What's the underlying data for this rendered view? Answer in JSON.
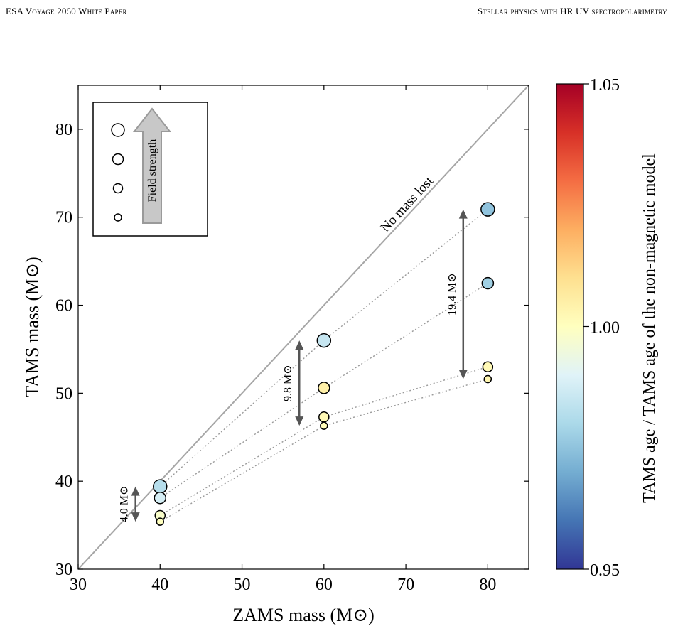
{
  "header": {
    "left": "ESA Voyage 2050 White Paper",
    "right": "Stellar physics with HR UV spectropolarimetry"
  },
  "chart_data": {
    "type": "scatter",
    "xlabel": "ZAMS mass (M⊙)",
    "ylabel": "TAMS mass (M⊙)",
    "xlim": [
      30,
      85
    ],
    "ylim": [
      30,
      85
    ],
    "xticks": [
      "30",
      "40",
      "50",
      "60",
      "70",
      "80"
    ],
    "yticks": [
      "30",
      "40",
      "50",
      "60",
      "70",
      "80"
    ],
    "grid": false,
    "identity_line_label": "No mass lost",
    "legend": {
      "position": "top-left",
      "label": "Field strength",
      "marker_sizes": [
        "largest",
        "large",
        "medium",
        "small"
      ]
    },
    "colorbar": {
      "label": "TAMS age / TAMS age of the non-magnetic model",
      "min": 0.95,
      "max": 1.05,
      "ticks": [
        "0.95",
        "1.00",
        "1.05"
      ],
      "colormap": "RdYlBu_r"
    },
    "points": [
      {
        "zams": 40,
        "tams": 39.4,
        "field_rank": 4,
        "age_ratio": 0.982
      },
      {
        "zams": 40,
        "tams": 38.1,
        "field_rank": 3,
        "age_ratio": 0.988
      },
      {
        "zams": 40,
        "tams": 36.1,
        "field_rank": 2,
        "age_ratio": 0.998
      },
      {
        "zams": 40,
        "tams": 35.4,
        "field_rank": 1,
        "age_ratio": 1.0
      },
      {
        "zams": 60,
        "tams": 56.0,
        "field_rank": 4,
        "age_ratio": 0.985
      },
      {
        "zams": 60,
        "tams": 50.6,
        "field_rank": 3,
        "age_ratio": 1.005
      },
      {
        "zams": 60,
        "tams": 47.3,
        "field_rank": 2,
        "age_ratio": 1.002
      },
      {
        "zams": 60,
        "tams": 46.3,
        "field_rank": 1,
        "age_ratio": 1.001
      },
      {
        "zams": 80,
        "tams": 70.9,
        "field_rank": 4,
        "age_ratio": 0.975
      },
      {
        "zams": 80,
        "tams": 62.5,
        "field_rank": 3,
        "age_ratio": 0.978
      },
      {
        "zams": 80,
        "tams": 53.0,
        "field_rank": 2,
        "age_ratio": 1.002
      },
      {
        "zams": 80,
        "tams": 51.6,
        "field_rank": 1,
        "age_ratio": 1.003
      }
    ],
    "annotations": [
      {
        "label": "4.0 M⊙",
        "x": 37,
        "y_top": 39.4,
        "y_bottom": 35.4
      },
      {
        "label": "9.8 M⊙",
        "x": 57,
        "y_top": 56.0,
        "y_bottom": 46.3
      },
      {
        "label": "19.4 M⊙",
        "x": 77,
        "y_top": 70.9,
        "y_bottom": 51.6
      }
    ]
  }
}
